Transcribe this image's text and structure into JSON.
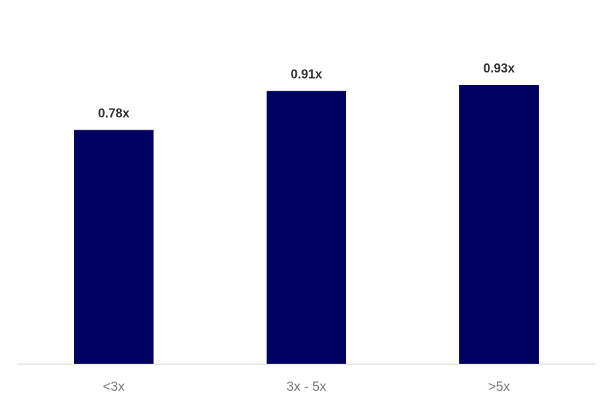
{
  "chart_data": {
    "type": "bar",
    "categories": [
      "<3x",
      "3x - 5x",
      ">5x"
    ],
    "values": [
      0.78,
      0.91,
      0.93
    ],
    "value_labels": [
      "0.78x",
      "0.91x",
      "0.93x"
    ],
    "color": "#000060"
  }
}
